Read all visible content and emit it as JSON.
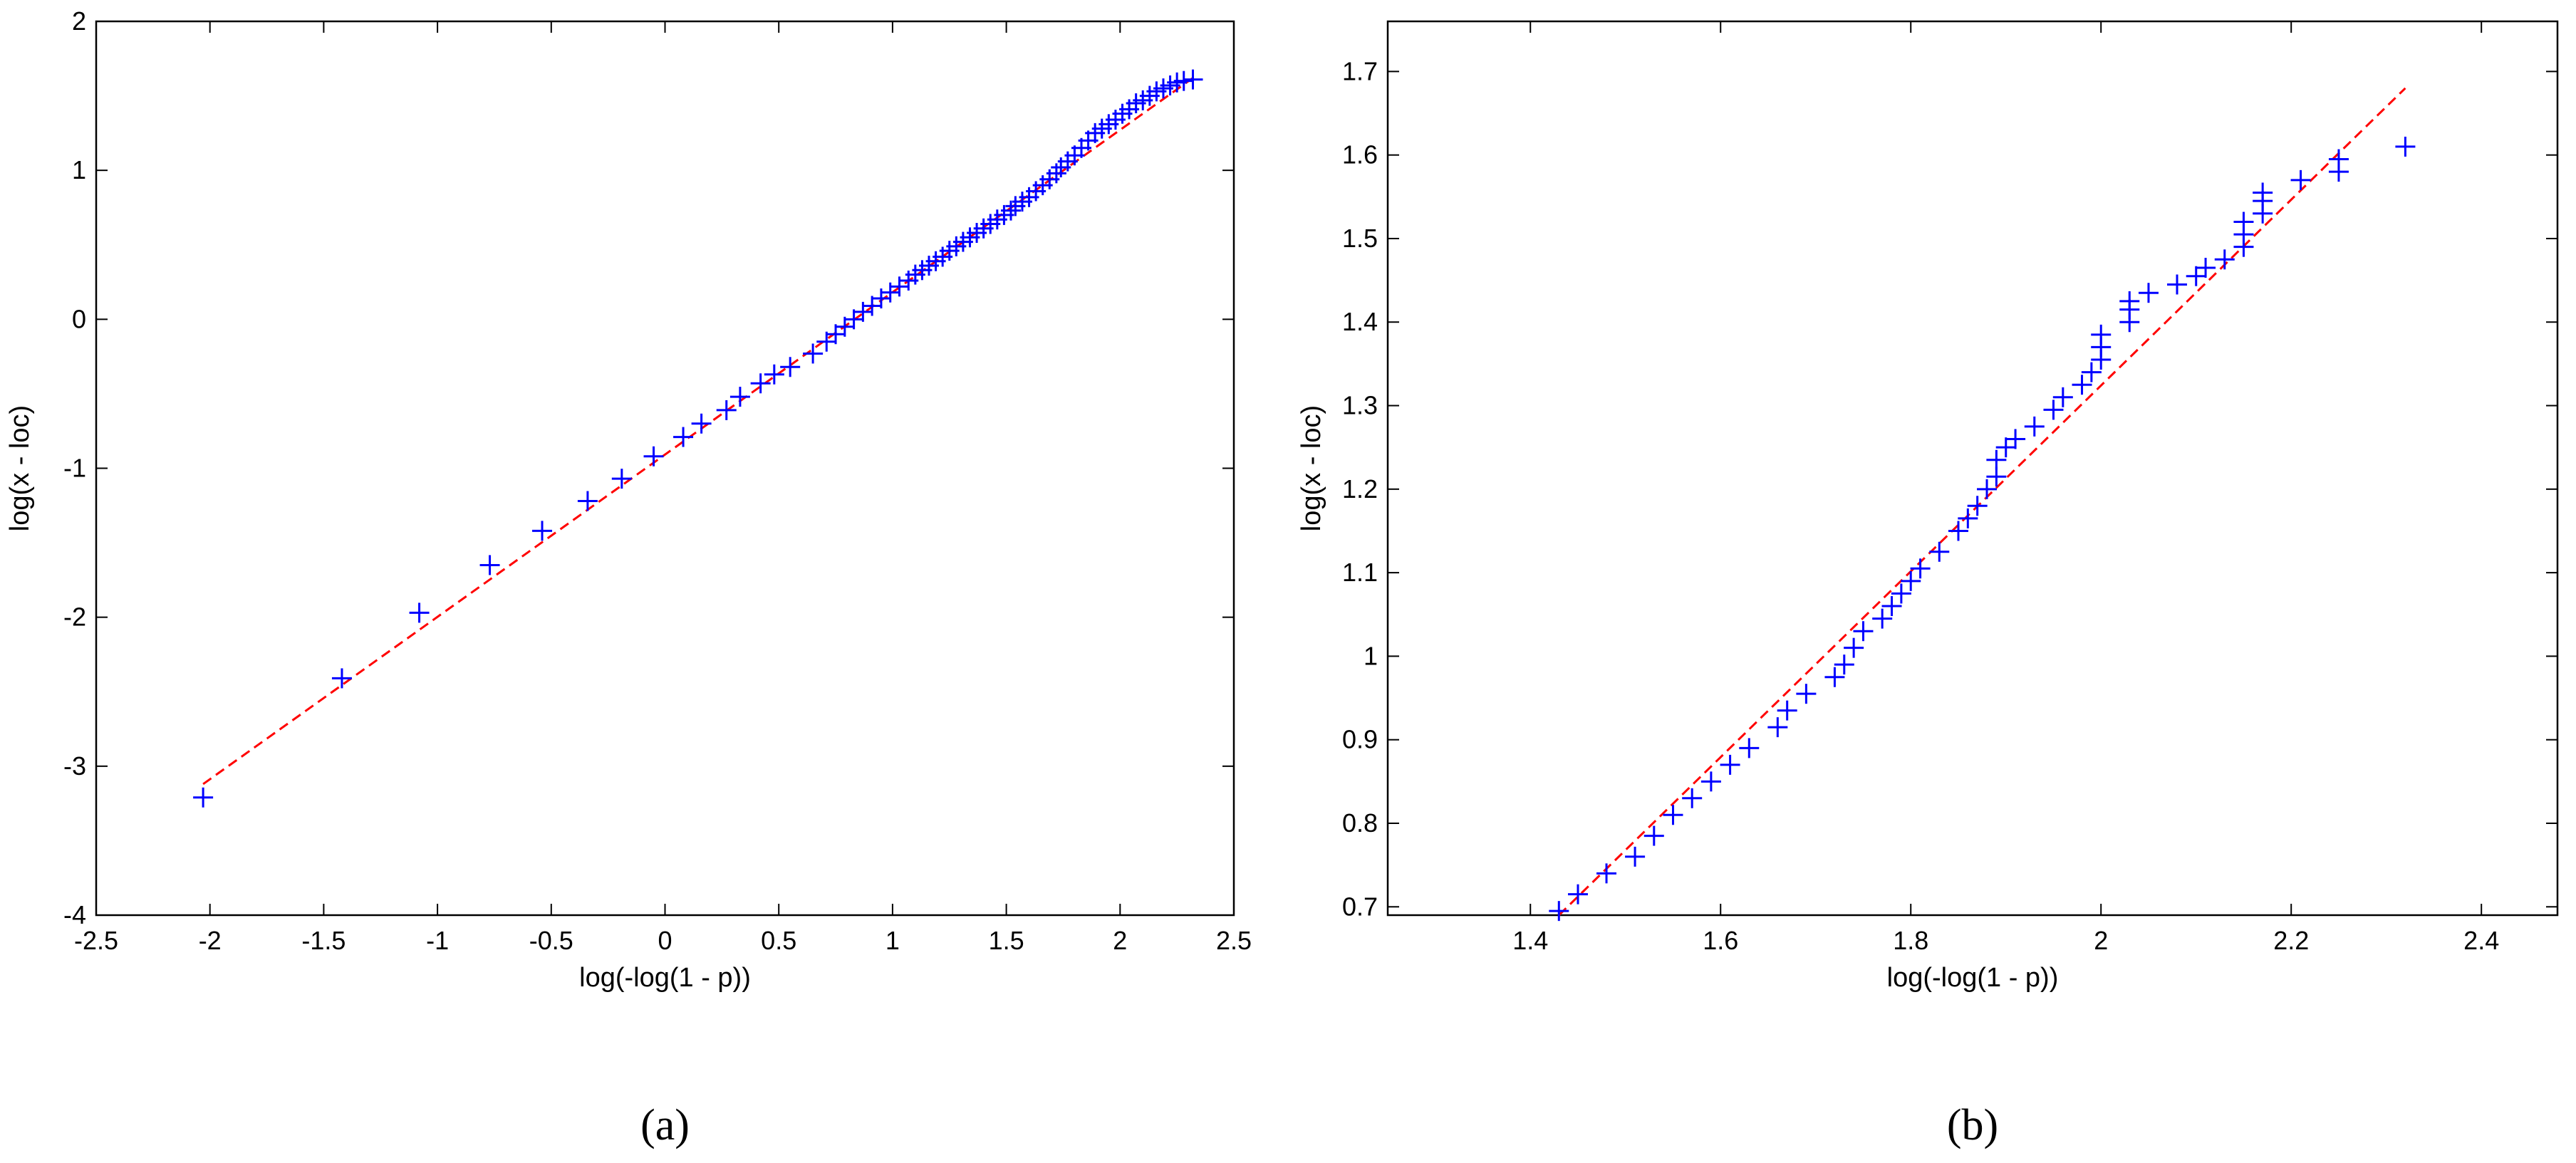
{
  "chart_data": [
    {
      "type": "scatter",
      "title": "",
      "caption": "(a)",
      "xlabel": "log(-log(1 - p))",
      "ylabel": "log(x - loc)",
      "xlim": [
        -2.5,
        2.5
      ],
      "ylim": [
        -4,
        2
      ],
      "xticks": [
        "-2.5",
        "-2",
        "-1.5",
        "-1",
        "-0.5",
        "0",
        "0.5",
        "1",
        "1.5",
        "2",
        "2.5"
      ],
      "yticks": [
        "-4",
        "-3",
        "-2",
        "-1",
        "0",
        "1",
        "2"
      ],
      "grid": false,
      "marker_color": "#0000ff",
      "line_color": "#ff0000",
      "fit_line": [
        [
          -2.03,
          -3.12
        ],
        [
          2.32,
          1.62
        ]
      ],
      "points": [
        [
          -2.03,
          -3.21
        ],
        [
          -1.42,
          -2.41
        ],
        [
          -1.08,
          -1.97
        ],
        [
          -0.77,
          -1.65
        ],
        [
          -0.54,
          -1.42
        ],
        [
          -0.34,
          -1.22
        ],
        [
          -0.19,
          -1.07
        ],
        [
          -0.05,
          -0.92
        ],
        [
          0.08,
          -0.79
        ],
        [
          0.16,
          -0.7
        ],
        [
          0.27,
          -0.61
        ],
        [
          0.33,
          -0.52
        ],
        [
          0.42,
          -0.43
        ],
        [
          0.48,
          -0.37
        ],
        [
          0.55,
          -0.32
        ],
        [
          0.65,
          -0.23
        ],
        [
          0.71,
          -0.15
        ],
        [
          0.75,
          -0.1
        ],
        [
          0.79,
          -0.05
        ],
        [
          0.83,
          0.0
        ],
        [
          0.87,
          0.05
        ],
        [
          0.91,
          0.09
        ],
        [
          0.95,
          0.14
        ],
        [
          0.99,
          0.18
        ],
        [
          1.03,
          0.22
        ],
        [
          1.07,
          0.26
        ],
        [
          1.1,
          0.3
        ],
        [
          1.13,
          0.33
        ],
        [
          1.16,
          0.36
        ],
        [
          1.19,
          0.39
        ],
        [
          1.22,
          0.42
        ],
        [
          1.25,
          0.46
        ],
        [
          1.28,
          0.49
        ],
        [
          1.31,
          0.52
        ],
        [
          1.34,
          0.55
        ],
        [
          1.37,
          0.58
        ],
        [
          1.4,
          0.61
        ],
        [
          1.43,
          0.64
        ],
        [
          1.46,
          0.67
        ],
        [
          1.49,
          0.7
        ],
        [
          1.52,
          0.73
        ],
        [
          1.54,
          0.76
        ],
        [
          1.57,
          0.79
        ],
        [
          1.6,
          0.82
        ],
        [
          1.63,
          0.86
        ],
        [
          1.66,
          0.9
        ],
        [
          1.69,
          0.94
        ],
        [
          1.72,
          0.98
        ],
        [
          1.74,
          1.02
        ],
        [
          1.77,
          1.06
        ],
        [
          1.8,
          1.1
        ],
        [
          1.83,
          1.15
        ],
        [
          1.86,
          1.2
        ],
        [
          1.89,
          1.25
        ],
        [
          1.92,
          1.28
        ],
        [
          1.95,
          1.31
        ],
        [
          1.98,
          1.34
        ],
        [
          2.01,
          1.38
        ],
        [
          2.04,
          1.41
        ],
        [
          2.07,
          1.45
        ],
        [
          2.1,
          1.47
        ],
        [
          2.13,
          1.5
        ],
        [
          2.16,
          1.53
        ],
        [
          2.19,
          1.55
        ],
        [
          2.22,
          1.57
        ],
        [
          2.25,
          1.59
        ],
        [
          2.28,
          1.6
        ],
        [
          2.32,
          1.61
        ]
      ]
    },
    {
      "type": "scatter",
      "title": "",
      "caption": "(b)",
      "xlabel": "log(-log(1 - p))",
      "ylabel": "log(x - loc)",
      "xlim": [
        1.25,
        2.48
      ],
      "ylim": [
        0.69,
        1.76
      ],
      "xticks": [
        1.4,
        1.6,
        1.8,
        2,
        2.2,
        2.4
      ],
      "xtick_labels": [
        "1.4",
        "1.6",
        "1.8",
        "2",
        "2.2",
        "2.4"
      ],
      "yticks": [
        0.7,
        0.8,
        0.9,
        1.0,
        1.1,
        1.2,
        1.3,
        1.4,
        1.5,
        1.6,
        1.7
      ],
      "ytick_labels": [
        "0.7",
        "0.8",
        "0.9",
        "1",
        "1.1",
        "1.2",
        "1.3",
        "1.4",
        "1.5",
        "1.6",
        "1.7"
      ],
      "grid": false,
      "marker_color": "#0000ff",
      "line_color": "#ff0000",
      "fit_line": [
        [
          1.43,
          0.69
        ],
        [
          2.32,
          1.68
        ]
      ],
      "points": [
        [
          1.43,
          0.695
        ],
        [
          1.45,
          0.715
        ],
        [
          1.48,
          0.74
        ],
        [
          1.51,
          0.76
        ],
        [
          1.53,
          0.785
        ],
        [
          1.55,
          0.81
        ],
        [
          1.57,
          0.83
        ],
        [
          1.59,
          0.85
        ],
        [
          1.61,
          0.87
        ],
        [
          1.63,
          0.89
        ],
        [
          1.66,
          0.915
        ],
        [
          1.67,
          0.935
        ],
        [
          1.69,
          0.955
        ],
        [
          1.72,
          0.975
        ],
        [
          1.73,
          0.99
        ],
        [
          1.74,
          1.01
        ],
        [
          1.75,
          1.03
        ],
        [
          1.77,
          1.045
        ],
        [
          1.78,
          1.06
        ],
        [
          1.79,
          1.075
        ],
        [
          1.8,
          1.09
        ],
        [
          1.81,
          1.105
        ],
        [
          1.83,
          1.125
        ],
        [
          1.85,
          1.15
        ],
        [
          1.86,
          1.165
        ],
        [
          1.87,
          1.18
        ],
        [
          1.88,
          1.2
        ],
        [
          1.89,
          1.215
        ],
        [
          1.89,
          1.235
        ],
        [
          1.9,
          1.25
        ],
        [
          1.91,
          1.26
        ],
        [
          1.93,
          1.275
        ],
        [
          1.95,
          1.295
        ],
        [
          1.96,
          1.31
        ],
        [
          1.98,
          1.325
        ],
        [
          1.99,
          1.34
        ],
        [
          2.0,
          1.355
        ],
        [
          2.0,
          1.37
        ],
        [
          2.0,
          1.385
        ],
        [
          2.03,
          1.4
        ],
        [
          2.03,
          1.415
        ],
        [
          2.03,
          1.425
        ],
        [
          2.05,
          1.435
        ],
        [
          2.08,
          1.445
        ],
        [
          2.1,
          1.455
        ],
        [
          2.11,
          1.465
        ],
        [
          2.13,
          1.475
        ],
        [
          2.15,
          1.49
        ],
        [
          2.15,
          1.505
        ],
        [
          2.15,
          1.52
        ],
        [
          2.17,
          1.53
        ],
        [
          2.17,
          1.545
        ],
        [
          2.17,
          1.555
        ],
        [
          2.21,
          1.57
        ],
        [
          2.25,
          1.58
        ],
        [
          2.25,
          1.595
        ],
        [
          2.32,
          1.61
        ]
      ]
    }
  ]
}
